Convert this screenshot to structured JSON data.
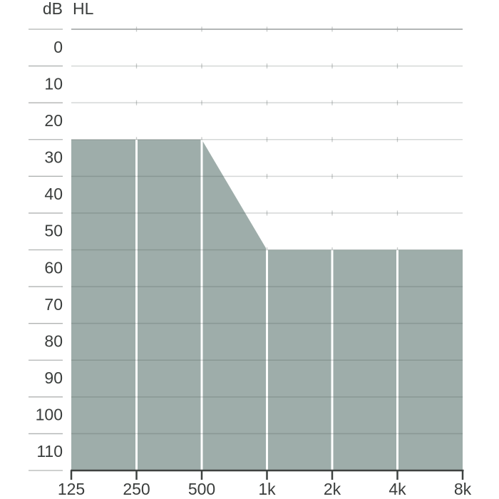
{
  "colors": {
    "background": "#ffffff",
    "area_fill": "#9eadaa",
    "grid_line": "rgba(62,76,73,0.22)",
    "grid_line_top": "#9a9e9d",
    "y_axis_tick": "#b0b3b2",
    "grid_cross_tick": "#c6c9c8",
    "x_axis": "#3e4240",
    "octave_separator": "#ffffff",
    "label_text": "#3a3d3c"
  },
  "chart_data": {
    "type": "area",
    "ylabel_db": "dB",
    "ylabel_hl": "HL",
    "x_tick_labels": [
      "125",
      "250",
      "500",
      "1k",
      "2k",
      "4k",
      "8k"
    ],
    "x_frequencies_hz": [
      125,
      250,
      500,
      1000,
      2000,
      4000,
      8000
    ],
    "y_tick_labels": [
      "0",
      "10",
      "20",
      "30",
      "40",
      "50",
      "60",
      "70",
      "80",
      "90",
      "100",
      "110"
    ],
    "y_tick_values_db": [
      0,
      10,
      20,
      30,
      40,
      50,
      60,
      70,
      80,
      90,
      100,
      110
    ],
    "ylim_db": [
      -5,
      115
    ],
    "xscale": "log-octave",
    "grid": true,
    "legend": false,
    "octave_separator_frequencies_hz": [
      250,
      500,
      1000,
      2000,
      4000
    ],
    "series": [
      {
        "name": "shaded-range",
        "type": "area",
        "upper_boundary": [
          {
            "f_hz": 125,
            "db": 25
          },
          {
            "f_hz": 500,
            "db": 25
          },
          {
            "f_hz": 1000,
            "db": 55
          },
          {
            "f_hz": 8000,
            "db": 55
          }
        ],
        "lower_boundary_db": 115
      }
    ]
  }
}
